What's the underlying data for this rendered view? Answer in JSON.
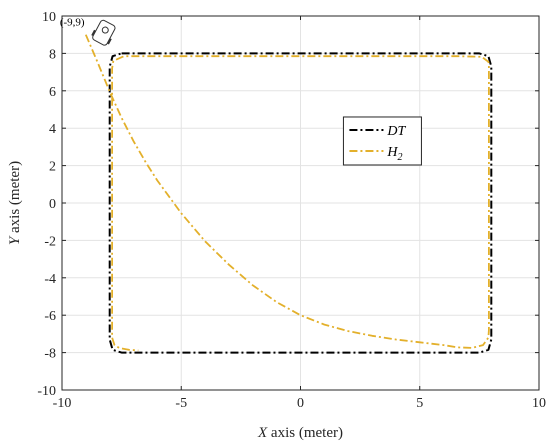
{
  "chart_data": {
    "type": "line",
    "xlabel_var": "X",
    "xlabel_rest": " axis (meter)",
    "ylabel_var": "Y",
    "ylabel_rest": " axis (meter)",
    "xlim": [
      -10,
      10
    ],
    "ylim": [
      -10,
      10
    ],
    "xticks": [
      -10,
      -5,
      0,
      5,
      10
    ],
    "yticks": [
      -10,
      -8,
      -6,
      -4,
      -2,
      0,
      2,
      4,
      6,
      8,
      10
    ],
    "grid": true,
    "legend_position": "upper-right-inside",
    "annotation": "(-9,9)",
    "start_point": [
      -9,
      9
    ],
    "series": [
      {
        "name": "DT",
        "subscript": "",
        "color": "#000000",
        "style": "dash-dot",
        "x": [
          -7.5,
          -6.2,
          0,
          6.2,
          7.5,
          7.88,
          8.0,
          8.0,
          7.88,
          7.5,
          6.2,
          0,
          -6.2,
          -7.5,
          -7.88,
          -8.0,
          -8.0,
          -7.88,
          -7.5
        ],
        "y": [
          8.0,
          8.0,
          8.0,
          8.0,
          8.0,
          7.85,
          7.3,
          -7.3,
          -7.85,
          -8.0,
          -8.0,
          -8.0,
          -8.0,
          -8.0,
          -7.85,
          -7.3,
          7.3,
          7.85,
          8.0
        ]
      },
      {
        "name": "H",
        "subscript": "2",
        "color": "#e3b02b",
        "style": "dash-dot",
        "x": [
          -9.0,
          -8.5,
          -8.0,
          -7.5,
          -7.0,
          -6.5,
          -6.0,
          -5.0,
          -4.0,
          -3.0,
          -2.0,
          -1.0,
          0.0,
          1.0,
          2.0,
          3.0,
          4.0,
          5.0,
          6.0,
          6.6,
          7.2,
          7.65,
          7.88,
          7.9,
          7.9,
          7.88,
          7.6,
          6.6,
          0,
          -6.5,
          -7.4,
          -7.85,
          -7.9,
          -7.9,
          -7.8,
          -7.6,
          -7.2,
          -6.8
        ],
        "y": [
          9.0,
          7.5,
          5.95,
          4.55,
          3.3,
          2.2,
          1.2,
          -0.55,
          -2.05,
          -3.3,
          -4.4,
          -5.3,
          -6.0,
          -6.5,
          -6.85,
          -7.1,
          -7.3,
          -7.45,
          -7.6,
          -7.72,
          -7.75,
          -7.6,
          -7.2,
          -6.8,
          7.3,
          7.55,
          7.82,
          7.85,
          7.85,
          7.85,
          7.85,
          7.6,
          7.2,
          -7.2,
          -7.6,
          -7.75,
          -7.85,
          -7.88
        ]
      }
    ]
  }
}
